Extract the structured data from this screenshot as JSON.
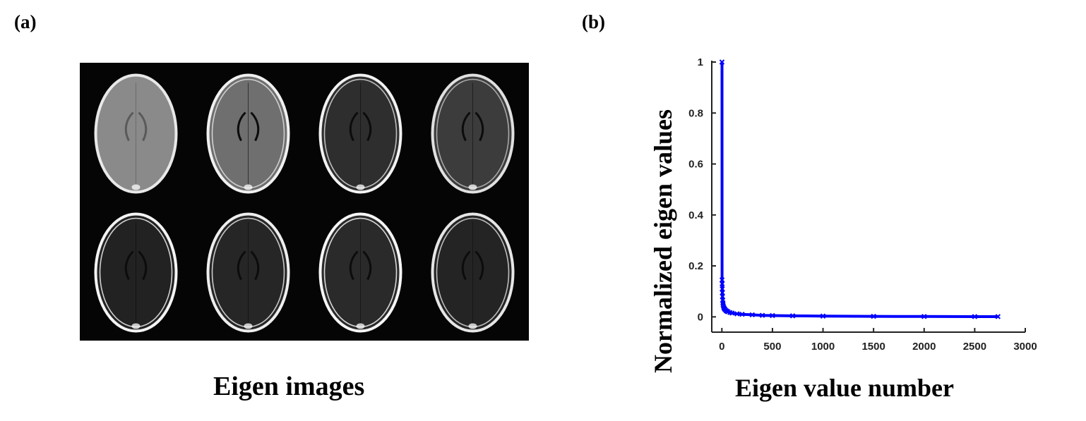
{
  "panels": {
    "a": {
      "label": "(a)",
      "caption": "Eigen images"
    },
    "b": {
      "label": "(b)"
    }
  },
  "eigen_images": {
    "count": 8,
    "rows": 2,
    "cols": 4,
    "background": "#050505"
  },
  "chart_data": {
    "type": "scatter",
    "xlabel": "Eigen value number",
    "ylabel": "Normalized eigen values",
    "xlim": [
      -100,
      3000
    ],
    "ylim": [
      -0.06,
      1.0
    ],
    "xticks": [
      0,
      500,
      1000,
      1500,
      2000,
      2500,
      3000
    ],
    "yticks": [
      0,
      0.2,
      0.4,
      0.6,
      0.8,
      1
    ],
    "marker": "x",
    "color": "#0000ff",
    "grid": false,
    "series": [
      {
        "x": [
          1,
          2,
          3,
          4,
          5,
          6,
          8,
          10,
          12,
          15,
          20,
          25,
          30,
          40,
          50,
          60,
          80,
          100,
          150,
          200,
          300,
          400,
          500,
          700,
          1000,
          1500,
          2000,
          2500,
          2730
        ],
        "y": [
          1.0,
          0.145,
          0.13,
          0.11,
          0.095,
          0.08,
          0.065,
          0.055,
          0.048,
          0.042,
          0.036,
          0.032,
          0.029,
          0.025,
          0.022,
          0.02,
          0.017,
          0.015,
          0.012,
          0.01,
          0.008,
          0.006,
          0.005,
          0.004,
          0.003,
          0.002,
          0.0015,
          0.001,
          0.001
        ]
      }
    ]
  }
}
